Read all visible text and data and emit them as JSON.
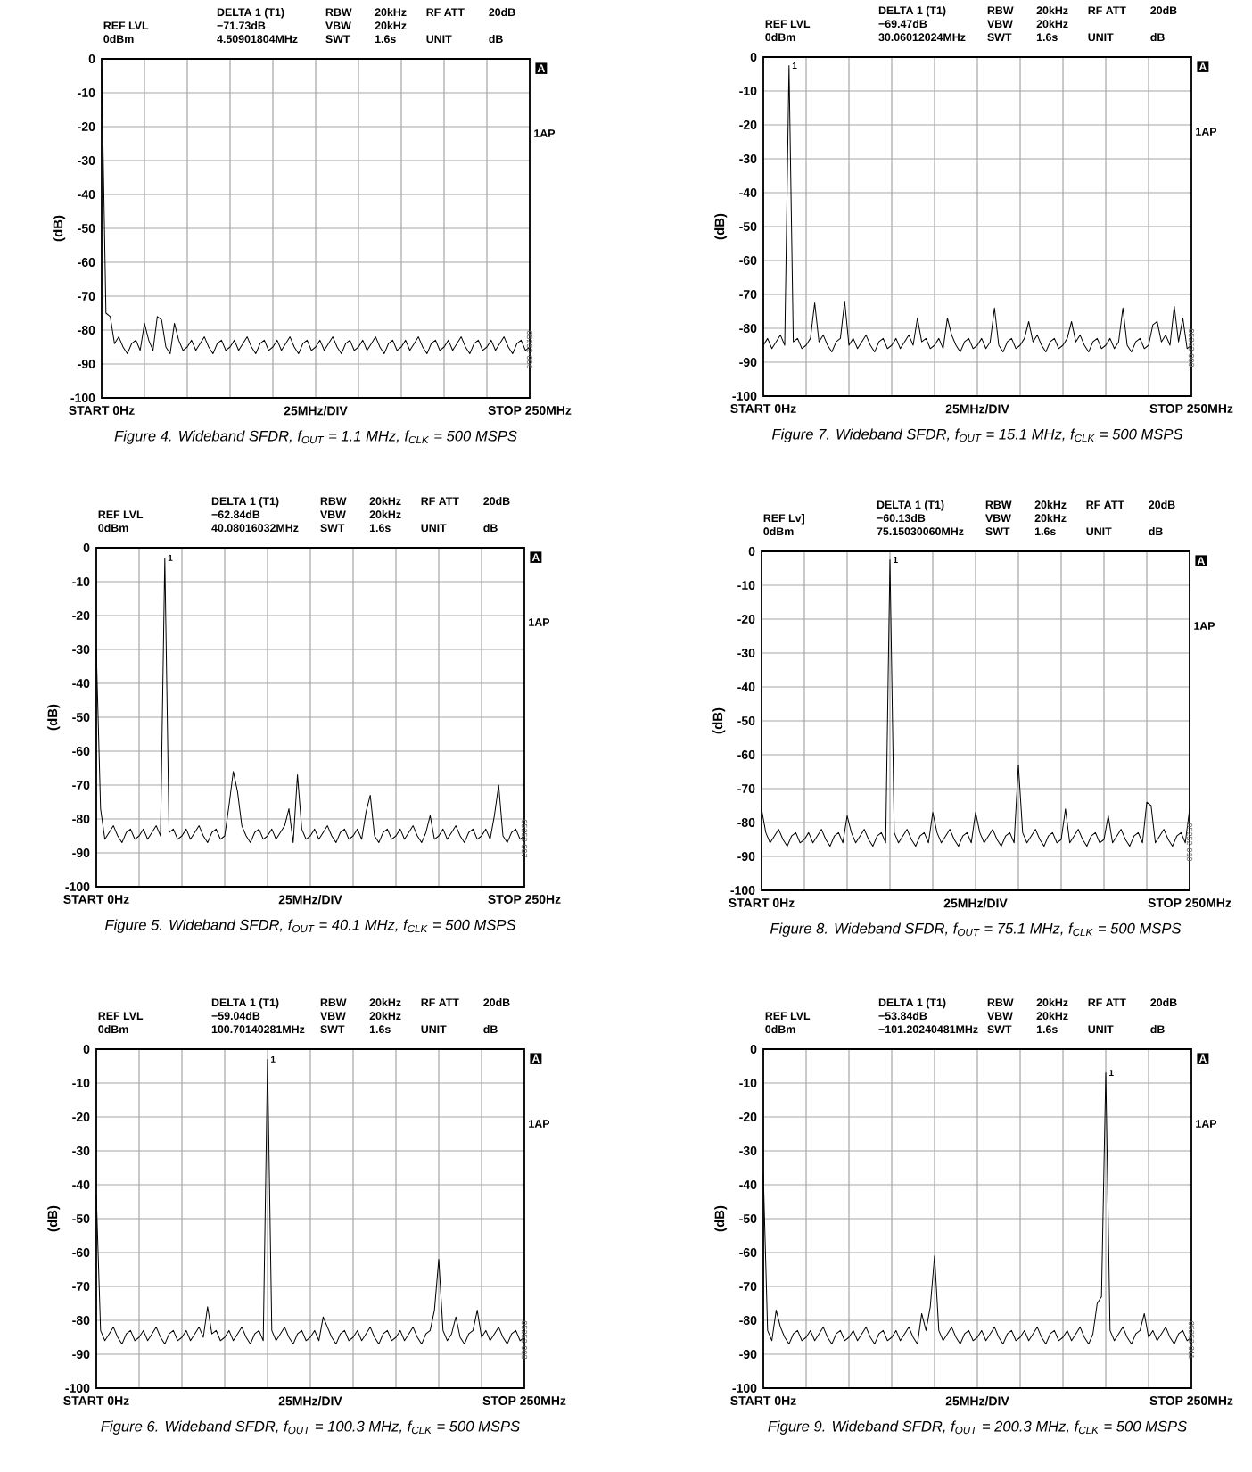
{
  "chart_data": [
    {
      "type": "line",
      "title": "Figure 4. Wideband SFDR, f$_{OUT}$ = 1.1 MHz, f$_{CLK}$ = 500 MSPS",
      "ylabel": "(dB)",
      "color": "#000000",
      "grid": true,
      "ylim": [
        -100,
        0
      ],
      "yticks": [
        0,
        -10,
        -20,
        -30,
        -40,
        -50,
        -60,
        -70,
        -80,
        -90,
        -100
      ],
      "categories": [
        "START 0Hz",
        null,
        null,
        null,
        null,
        null,
        null,
        null,
        null,
        null,
        null,
        null,
        null,
        null,
        null,
        null,
        null,
        null,
        null,
        null,
        null,
        null,
        null,
        null,
        null,
        null,
        null,
        null,
        null,
        null,
        null,
        null,
        null,
        null,
        null,
        null,
        null,
        null,
        null,
        null,
        null,
        null,
        null,
        null,
        null,
        null,
        null,
        null,
        null,
        null,
        "25MHz/DIV",
        null,
        null,
        null,
        null,
        null,
        null,
        null,
        null,
        null,
        null,
        null,
        null,
        null,
        null,
        null,
        null,
        null,
        null,
        null,
        null,
        null,
        null,
        null,
        null,
        null,
        null,
        null,
        null,
        null,
        null,
        null,
        null,
        null,
        null,
        null,
        null,
        null,
        null,
        null,
        null,
        null,
        null,
        null,
        null,
        null,
        null,
        null,
        null,
        null,
        "STOP 250MHz"
      ],
      "values": [
        -3,
        -75,
        -76,
        -84,
        -82,
        -85,
        -87,
        -84,
        -83,
        -86,
        -78,
        -83,
        -86,
        -76,
        -77,
        -85,
        -87,
        -78,
        -83,
        -86,
        -85,
        -83,
        -86,
        -84,
        -82,
        -85,
        -87,
        -84,
        -83,
        -86,
        -85,
        -83,
        -86,
        -84,
        -82,
        -85,
        -87,
        -84,
        -83,
        -86,
        -85,
        -83,
        -86,
        -84,
        -82,
        -85,
        -87,
        -84,
        -83,
        -86,
        -85,
        -83,
        -86,
        -84,
        -82,
        -85,
        -87,
        -84,
        -83,
        -86,
        -85,
        -83,
        -86,
        -84,
        -82,
        -85,
        -87,
        -84,
        -83,
        -86,
        -85,
        -83,
        -86,
        -84,
        -82,
        -85,
        -87,
        -84,
        -83,
        -86,
        -85,
        -83,
        -86,
        -84,
        -82,
        -85,
        -87,
        -84,
        -83,
        -86,
        -85,
        -83,
        -86,
        -84,
        -82,
        -85,
        -87,
        -84,
        -83,
        -86,
        -85
      ],
      "annotations": [
        "REF LVL",
        "0dBm",
        "DELTA 1 (T1)",
        "−71.73dB",
        "4.50901804MHz",
        "RBW",
        "VBW",
        "SWT",
        "20kHz",
        "20kHz",
        "1.6s",
        "RF ATT",
        "20dB",
        "UNIT",
        "dB",
        "A",
        "1AP",
        "05252-006"
      ]
    },
    {
      "type": "line",
      "title": "Figure 7. Wideband SFDR, f$_{OUT}$ = 15.1 MHz, f$_{CLK}$ = 500 MSPS",
      "ylabel": "(dB)",
      "color": "#000000",
      "grid": true,
      "ylim": [
        -100,
        0
      ],
      "yticks": [
        0,
        -10,
        -20,
        -30,
        -40,
        -50,
        -60,
        -70,
        -80,
        -90,
        -100
      ],
      "categories": [
        "START 0Hz",
        null,
        null,
        null,
        null,
        null,
        null,
        null,
        null,
        null,
        null,
        null,
        null,
        null,
        null,
        null,
        null,
        null,
        null,
        null,
        null,
        null,
        null,
        null,
        null,
        null,
        null,
        null,
        null,
        null,
        null,
        null,
        null,
        null,
        null,
        null,
        null,
        null,
        null,
        null,
        null,
        null,
        null,
        null,
        null,
        null,
        null,
        null,
        null,
        null,
        "25MHz/DIV",
        null,
        null,
        null,
        null,
        null,
        null,
        null,
        null,
        null,
        null,
        null,
        null,
        null,
        null,
        null,
        null,
        null,
        null,
        null,
        null,
        null,
        null,
        null,
        null,
        null,
        null,
        null,
        null,
        null,
        null,
        null,
        null,
        null,
        null,
        null,
        null,
        null,
        null,
        null,
        null,
        null,
        null,
        null,
        null,
        null,
        null,
        null,
        null,
        null,
        "STOP 250MHz"
      ],
      "values": [
        -85,
        -83,
        -86,
        -84,
        -82,
        -85,
        -2.5,
        -84,
        -83,
        -86,
        -85,
        -83,
        -72.5,
        -84,
        -82,
        -85,
        -87,
        -84,
        -83,
        -72,
        -85,
        -83,
        -86,
        -84,
        -82,
        -85,
        -87,
        -84,
        -83,
        -86,
        -85,
        -83,
        -86,
        -84,
        -82,
        -85,
        -77,
        -84,
        -83,
        -86,
        -85,
        -83,
        -86,
        -77,
        -82,
        -85,
        -87,
        -84,
        -83,
        -86,
        -85,
        -83,
        -86,
        -84,
        -74,
        -85,
        -87,
        -84,
        -83,
        -86,
        -85,
        -83,
        -78,
        -84,
        -82,
        -85,
        -87,
        -84,
        -83,
        -86,
        -85,
        -83,
        -78,
        -84,
        -82,
        -85,
        -87,
        -84,
        -83,
        -86,
        -85,
        -83,
        -86,
        -84,
        -74,
        -85,
        -87,
        -84,
        -83,
        -86,
        -85,
        -79,
        -78,
        -84,
        -82,
        -85,
        -73.5,
        -84,
        -77,
        -86,
        -85
      ],
      "annotations": [
        "REF LVL",
        "0dBm",
        "DELTA 1 (T1)",
        "−69.47dB",
        "30.06012024MHz",
        "RBW",
        "VBW",
        "SWT",
        "20kHz",
        "20kHz",
        "1.6s",
        "RF ATT",
        "20dB",
        "UNIT",
        "dB",
        "A",
        "1AP",
        "05252-009",
        {
          "text": "1",
          "y": -2.5
        }
      ]
    },
    {
      "type": "line",
      "title": "Figure 5. Wideband SFDR, f$_{OUT}$ = 40.1 MHz, f$_{CLK}$ = 500 MSPS",
      "ylabel": "(dB)",
      "color": "#000000",
      "grid": true,
      "ylim": [
        -100,
        0
      ],
      "yticks": [
        0,
        -10,
        -20,
        -30,
        -40,
        -50,
        -60,
        -70,
        -80,
        -90,
        -100
      ],
      "categories": [
        "START 0Hz",
        null,
        null,
        null,
        null,
        null,
        null,
        null,
        null,
        null,
        null,
        null,
        null,
        null,
        null,
        null,
        null,
        null,
        null,
        null,
        null,
        null,
        null,
        null,
        null,
        null,
        null,
        null,
        null,
        null,
        null,
        null,
        null,
        null,
        null,
        null,
        null,
        null,
        null,
        null,
        null,
        null,
        null,
        null,
        null,
        null,
        null,
        null,
        null,
        null,
        "25MHz/DIV",
        null,
        null,
        null,
        null,
        null,
        null,
        null,
        null,
        null,
        null,
        null,
        null,
        null,
        null,
        null,
        null,
        null,
        null,
        null,
        null,
        null,
        null,
        null,
        null,
        null,
        null,
        null,
        null,
        null,
        null,
        null,
        null,
        null,
        null,
        null,
        null,
        null,
        null,
        null,
        null,
        null,
        null,
        null,
        null,
        null,
        null,
        null,
        null,
        null,
        "STOP 250Hz"
      ],
      "values": [
        -30,
        -77,
        -86,
        -84,
        -82,
        -85,
        -87,
        -84,
        -83,
        -86,
        -85,
        -83,
        -86,
        -84,
        -82,
        -85,
        -3,
        -84,
        -83,
        -86,
        -85,
        -83,
        -86,
        -84,
        -82,
        -85,
        -87,
        -84,
        -83,
        -86,
        -85,
        -76,
        -66,
        -72,
        -82,
        -85,
        -87,
        -84,
        -83,
        -86,
        -85,
        -83,
        -86,
        -84,
        -82,
        -77,
        -87,
        -67,
        -83,
        -86,
        -85,
        -83,
        -86,
        -84,
        -82,
        -85,
        -87,
        -84,
        -83,
        -86,
        -85,
        -83,
        -86,
        -78,
        -73,
        -85,
        -87,
        -84,
        -83,
        -86,
        -85,
        -83,
        -86,
        -84,
        -82,
        -85,
        -87,
        -84,
        -79,
        -86,
        -85,
        -83,
        -86,
        -84,
        -82,
        -85,
        -87,
        -84,
        -83,
        -86,
        -85,
        -83,
        -86,
        -79,
        -70,
        -85,
        -87,
        -84,
        -83,
        -86,
        -85
      ],
      "annotations": [
        "REF LVL",
        "0dBm",
        "DELTA 1 (T1)",
        "−62.84dB",
        "40.08016032MHz",
        "RBW",
        "VBW",
        "SWT",
        "20kHz",
        "20kHz",
        "1.6s",
        "RF ATT",
        "20dB",
        "UNIT",
        "dB",
        "A",
        "1AP",
        "05252-007",
        {
          "text": "1",
          "y": -3
        }
      ]
    },
    {
      "type": "line",
      "title": "Figure 8. Wideband SFDR, f$_{OUT}$ = 75.1 MHz, f$_{CLK}$ = 500 MSPS",
      "ylabel": "(dB)",
      "color": "#000000",
      "grid": true,
      "ylim": [
        -100,
        0
      ],
      "yticks": [
        0,
        -10,
        -20,
        -30,
        -40,
        -50,
        -60,
        -70,
        -80,
        -90,
        -100
      ],
      "categories": [
        "START 0Hz",
        null,
        null,
        null,
        null,
        null,
        null,
        null,
        null,
        null,
        null,
        null,
        null,
        null,
        null,
        null,
        null,
        null,
        null,
        null,
        null,
        null,
        null,
        null,
        null,
        null,
        null,
        null,
        null,
        null,
        null,
        null,
        null,
        null,
        null,
        null,
        null,
        null,
        null,
        null,
        null,
        null,
        null,
        null,
        null,
        null,
        null,
        null,
        null,
        null,
        "25MHz/DIV",
        null,
        null,
        null,
        null,
        null,
        null,
        null,
        null,
        null,
        null,
        null,
        null,
        null,
        null,
        null,
        null,
        null,
        null,
        null,
        null,
        null,
        null,
        null,
        null,
        null,
        null,
        null,
        null,
        null,
        null,
        null,
        null,
        null,
        null,
        null,
        null,
        null,
        null,
        null,
        null,
        null,
        null,
        null,
        null,
        null,
        null,
        null,
        null,
        null,
        "STOP 250MHz"
      ],
      "values": [
        -76,
        -83,
        -86,
        -84,
        -82,
        -85,
        -87,
        -84,
        -83,
        -86,
        -85,
        -83,
        -86,
        -84,
        -82,
        -85,
        -87,
        -84,
        -83,
        -86,
        -78,
        -83,
        -86,
        -84,
        -82,
        -85,
        -87,
        -84,
        -83,
        -86,
        -2.5,
        -83,
        -86,
        -84,
        -82,
        -85,
        -87,
        -84,
        -83,
        -86,
        -77,
        -83,
        -86,
        -84,
        -82,
        -85,
        -87,
        -84,
        -83,
        -86,
        -77,
        -83,
        -86,
        -84,
        -82,
        -85,
        -87,
        -84,
        -83,
        -86,
        -63,
        -83,
        -86,
        -84,
        -82,
        -85,
        -87,
        -84,
        -83,
        -86,
        -85,
        -76,
        -86,
        -84,
        -82,
        -85,
        -87,
        -84,
        -83,
        -86,
        -85,
        -78,
        -86,
        -84,
        -82,
        -85,
        -87,
        -84,
        -83,
        -86,
        -74,
        -75,
        -86,
        -84,
        -82,
        -85,
        -87,
        -84,
        -83,
        -86,
        -76
      ],
      "annotations": [
        "REF Lv]",
        "0dBm",
        "DELTA 1 (T1)",
        "−60.13dB",
        "75.15030060MHz",
        "RBW",
        "VBW",
        "SWT",
        "20kHz",
        "20kHz",
        "1.6s",
        "RF ATT",
        "20dB",
        "UNIT",
        "dB",
        "A",
        "1AP",
        "05252-010",
        {
          "text": "1",
          "y": -2.5
        }
      ]
    },
    {
      "type": "line",
      "title": "Figure 6. Wideband SFDR, f$_{OUT}$ = 100.3 MHz, f$_{CLK}$ = 500 MSPS",
      "ylabel": "(dB)",
      "color": "#000000",
      "grid": true,
      "ylim": [
        -100,
        0
      ],
      "yticks": [
        0,
        -10,
        -20,
        -30,
        -40,
        -50,
        -60,
        -70,
        -80,
        -90,
        -100
      ],
      "categories": [
        "START 0Hz",
        null,
        null,
        null,
        null,
        null,
        null,
        null,
        null,
        null,
        null,
        null,
        null,
        null,
        null,
        null,
        null,
        null,
        null,
        null,
        null,
        null,
        null,
        null,
        null,
        null,
        null,
        null,
        null,
        null,
        null,
        null,
        null,
        null,
        null,
        null,
        null,
        null,
        null,
        null,
        null,
        null,
        null,
        null,
        null,
        null,
        null,
        null,
        null,
        null,
        "25MHz/DIV",
        null,
        null,
        null,
        null,
        null,
        null,
        null,
        null,
        null,
        null,
        null,
        null,
        null,
        null,
        null,
        null,
        null,
        null,
        null,
        null,
        null,
        null,
        null,
        null,
        null,
        null,
        null,
        null,
        null,
        null,
        null,
        null,
        null,
        null,
        null,
        null,
        null,
        null,
        null,
        null,
        null,
        null,
        null,
        null,
        null,
        null,
        null,
        null,
        null,
        "STOP 250MHz"
      ],
      "values": [
        -43,
        -83,
        -86,
        -84,
        -82,
        -85,
        -87,
        -84,
        -83,
        -86,
        -85,
        -83,
        -86,
        -84,
        -82,
        -85,
        -87,
        -84,
        -83,
        -86,
        -85,
        -83,
        -86,
        -84,
        -82,
        -85,
        -76,
        -84,
        -83,
        -86,
        -85,
        -83,
        -86,
        -84,
        -82,
        -85,
        -87,
        -84,
        -83,
        -86,
        -3,
        -83,
        -86,
        -84,
        -82,
        -85,
        -87,
        -84,
        -83,
        -86,
        -85,
        -83,
        -86,
        -79,
        -82,
        -85,
        -87,
        -84,
        -83,
        -86,
        -85,
        -83,
        -86,
        -84,
        -82,
        -85,
        -87,
        -84,
        -83,
        -86,
        -85,
        -83,
        -86,
        -84,
        -82,
        -85,
        -87,
        -84,
        -83,
        -77,
        -62,
        -83,
        -86,
        -84,
        -79,
        -85,
        -87,
        -84,
        -83,
        -77,
        -85,
        -83,
        -86,
        -84,
        -82,
        -85,
        -87,
        -84,
        -83,
        -86,
        -85
      ],
      "annotations": [
        "REF LVL",
        "0dBm",
        "DELTA 1 (T1)",
        "−59.04dB",
        "100.70140281MHz",
        "RBW",
        "VBW",
        "SWT",
        "20kHz",
        "20kHz",
        "1.6s",
        "RF ATT",
        "20dB",
        "UNIT",
        "dB",
        "A",
        "1AP",
        "05252-008",
        {
          "text": "1",
          "y": -3
        }
      ]
    },
    {
      "type": "line",
      "title": "Figure 9. Wideband SFDR, f$_{OUT}$ = 200.3 MHz, f$_{CLK}$ = 500 MSPS",
      "ylabel": "(dB)",
      "color": "#000000",
      "grid": true,
      "ylim": [
        -100,
        0
      ],
      "yticks": [
        0,
        -10,
        -20,
        -30,
        -40,
        -50,
        -60,
        -70,
        -80,
        -90,
        -100
      ],
      "categories": [
        "START 0Hz",
        null,
        null,
        null,
        null,
        null,
        null,
        null,
        null,
        null,
        null,
        null,
        null,
        null,
        null,
        null,
        null,
        null,
        null,
        null,
        null,
        null,
        null,
        null,
        null,
        null,
        null,
        null,
        null,
        null,
        null,
        null,
        null,
        null,
        null,
        null,
        null,
        null,
        null,
        null,
        null,
        null,
        null,
        null,
        null,
        null,
        null,
        null,
        null,
        null,
        "25MHz/DIV",
        null,
        null,
        null,
        null,
        null,
        null,
        null,
        null,
        null,
        null,
        null,
        null,
        null,
        null,
        null,
        null,
        null,
        null,
        null,
        null,
        null,
        null,
        null,
        null,
        null,
        null,
        null,
        null,
        null,
        null,
        null,
        null,
        null,
        null,
        null,
        null,
        null,
        null,
        null,
        null,
        null,
        null,
        null,
        null,
        null,
        null,
        null,
        null,
        null,
        "STOP 250MHz"
      ],
      "values": [
        -37,
        -83,
        -86,
        -77,
        -82,
        -85,
        -87,
        -84,
        -83,
        -86,
        -85,
        -83,
        -86,
        -84,
        -82,
        -85,
        -87,
        -84,
        -83,
        -86,
        -85,
        -83,
        -86,
        -84,
        -82,
        -85,
        -87,
        -84,
        -83,
        -86,
        -85,
        -83,
        -86,
        -84,
        -82,
        -85,
        -87,
        -78,
        -83,
        -76,
        -61,
        -83,
        -86,
        -84,
        -82,
        -85,
        -87,
        -84,
        -83,
        -86,
        -85,
        -83,
        -86,
        -84,
        -82,
        -85,
        -87,
        -84,
        -83,
        -86,
        -85,
        -83,
        -86,
        -84,
        -82,
        -85,
        -87,
        -84,
        -83,
        -86,
        -85,
        -83,
        -86,
        -84,
        -82,
        -85,
        -87,
        -84,
        -75,
        -73,
        -7,
        -83,
        -86,
        -84,
        -82,
        -85,
        -87,
        -84,
        -83,
        -78,
        -85,
        -83,
        -86,
        -84,
        -82,
        -85,
        -87,
        -84,
        -83,
        -86,
        -85
      ],
      "annotations": [
        "REF LVL",
        "0dBm",
        "DELTA 1 (T1)",
        "−53.84dB",
        "−101.20240481MHz",
        "RBW",
        "VBW",
        "SWT",
        "20kHz",
        "20kHz",
        "1.6s",
        "RF ATT",
        "20dB",
        "UNIT",
        "dB",
        "A",
        "1AP",
        "05252-011",
        {
          "text": "1",
          "y": -7
        }
      ]
    }
  ]
}
